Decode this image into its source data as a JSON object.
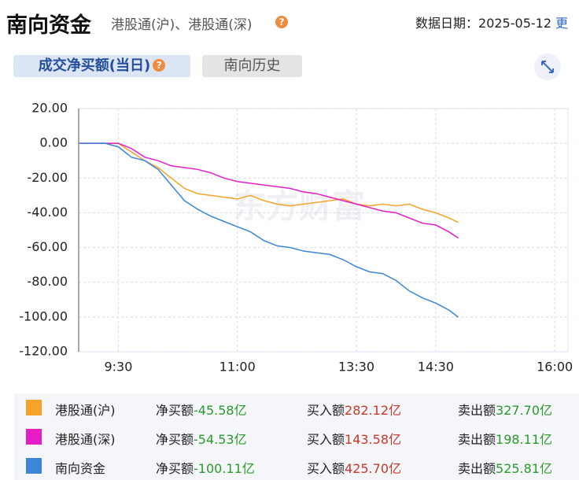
{
  "header": {
    "title": "南向资金",
    "subtitle": "港股通(沪)、港股通(深)",
    "date_label": "数据日期：",
    "date": "2025-05-12",
    "more": "更"
  },
  "tabs": [
    "成交净买额(当日)",
    "南向历史"
  ],
  "watermark": "东方财富",
  "chart_data": {
    "type": "line",
    "x": [
      "9:00",
      "9:10",
      "9:20",
      "9:30",
      "9:40",
      "9:50",
      "10:00",
      "10:10",
      "10:20",
      "10:30",
      "10:40",
      "10:50",
      "11:00",
      "11:10",
      "11:20",
      "11:30",
      "11:40",
      "11:50",
      "12:00",
      "13:00",
      "13:10",
      "13:20",
      "13:30",
      "13:40",
      "13:50",
      "14:00",
      "14:10",
      "14:20",
      "14:30",
      "14:40",
      "14:47"
    ],
    "xlim": [
      "9:00",
      "16:10"
    ],
    "xticks": [
      "9:30",
      "11:00",
      "13:30",
      "14:30",
      "16:00"
    ],
    "ylim": [
      -120,
      20
    ],
    "yticks": [
      {
        "value": 20,
        "label": "20.00"
      },
      {
        "value": 0,
        "label": "0.00"
      },
      {
        "value": -20,
        "label": "-20.00"
      },
      {
        "value": -40,
        "label": "-40.00"
      },
      {
        "value": -60,
        "label": "-60.00"
      },
      {
        "value": -80,
        "label": "-80.00"
      },
      {
        "value": -100,
        "label": "-100.00"
      },
      {
        "value": -120,
        "label": "-120.00"
      }
    ],
    "grid": true,
    "series": [
      {
        "name": "港股通(沪)",
        "color": "#f5a32a",
        "values": [
          0,
          0,
          0,
          0,
          -5,
          -10,
          -14,
          -20,
          -26,
          -29,
          -30,
          -31,
          -32,
          -30,
          -33,
          -35,
          -36,
          -35,
          -34,
          -34,
          -33,
          -32,
          -35,
          -36,
          -35,
          -36,
          -35,
          -38,
          -40,
          -43,
          -45.58
        ],
        "stats": [
          {
            "label": "净买额",
            "value": "-45.58亿"
          },
          {
            "label": "买入额",
            "value": "282.12亿"
          },
          {
            "label": "卖出额",
            "value": "327.70亿"
          }
        ]
      },
      {
        "name": "港股通(深)",
        "color": "#e61ec8",
        "values": [
          0,
          0,
          0,
          0,
          -3,
          -8,
          -10,
          -13,
          -14,
          -15,
          -17,
          -20,
          -22,
          -23,
          -24,
          -25,
          -26,
          -28,
          -29,
          -29,
          -31,
          -33,
          -35,
          -37,
          -39,
          -40,
          -43,
          -46,
          -47,
          -51,
          -54.53
        ],
        "stats": [
          {
            "label": "净买额",
            "value": "-54.53亿"
          },
          {
            "label": "买入额",
            "value": "143.58亿"
          },
          {
            "label": "卖出额",
            "value": "198.11亿"
          }
        ]
      },
      {
        "name": "南向资金",
        "color": "#3b86d6",
        "values": [
          0,
          0,
          0,
          -2,
          -8,
          -10,
          -15,
          -24,
          -33,
          -38,
          -42,
          -45,
          -48,
          -51,
          -56,
          -59,
          -60,
          -62,
          -63,
          -63,
          -64,
          -67,
          -71,
          -74,
          -75,
          -79,
          -85,
          -89,
          -92,
          -96,
          -100.11
        ],
        "stats": [
          {
            "label": "净买额",
            "value": "-100.11亿"
          },
          {
            "label": "买入额",
            "value": "425.70亿"
          },
          {
            "label": "卖出额",
            "value": "525.81亿"
          }
        ]
      }
    ]
  }
}
